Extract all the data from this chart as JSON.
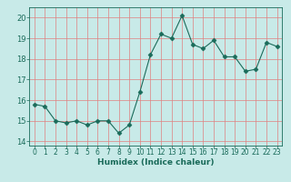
{
  "x": [
    0,
    1,
    2,
    3,
    4,
    5,
    6,
    7,
    8,
    9,
    10,
    11,
    12,
    13,
    14,
    15,
    16,
    17,
    18,
    19,
    20,
    21,
    22,
    23
  ],
  "y": [
    15.8,
    15.7,
    15.0,
    14.9,
    15.0,
    14.8,
    15.0,
    15.0,
    14.4,
    14.8,
    16.4,
    18.2,
    19.2,
    19.0,
    20.1,
    18.7,
    18.5,
    18.9,
    18.1,
    18.1,
    17.4,
    17.5,
    18.8,
    18.6
  ],
  "line_color": "#1a6b5a",
  "marker": "D",
  "marker_size": 2.5,
  "bg_color": "#c8eae8",
  "grid_color": "#e08080",
  "xlabel": "Humidex (Indice chaleur)",
  "ylim": [
    13.8,
    20.5
  ],
  "xlim": [
    -0.5,
    23.5
  ],
  "yticks": [
    14,
    15,
    16,
    17,
    18,
    19,
    20
  ],
  "xticks": [
    0,
    1,
    2,
    3,
    4,
    5,
    6,
    7,
    8,
    9,
    10,
    11,
    12,
    13,
    14,
    15,
    16,
    17,
    18,
    19,
    20,
    21,
    22,
    23
  ],
  "xlabel_fontsize": 6.5,
  "tick_fontsize": 5.5,
  "ytick_fontsize": 6.0
}
